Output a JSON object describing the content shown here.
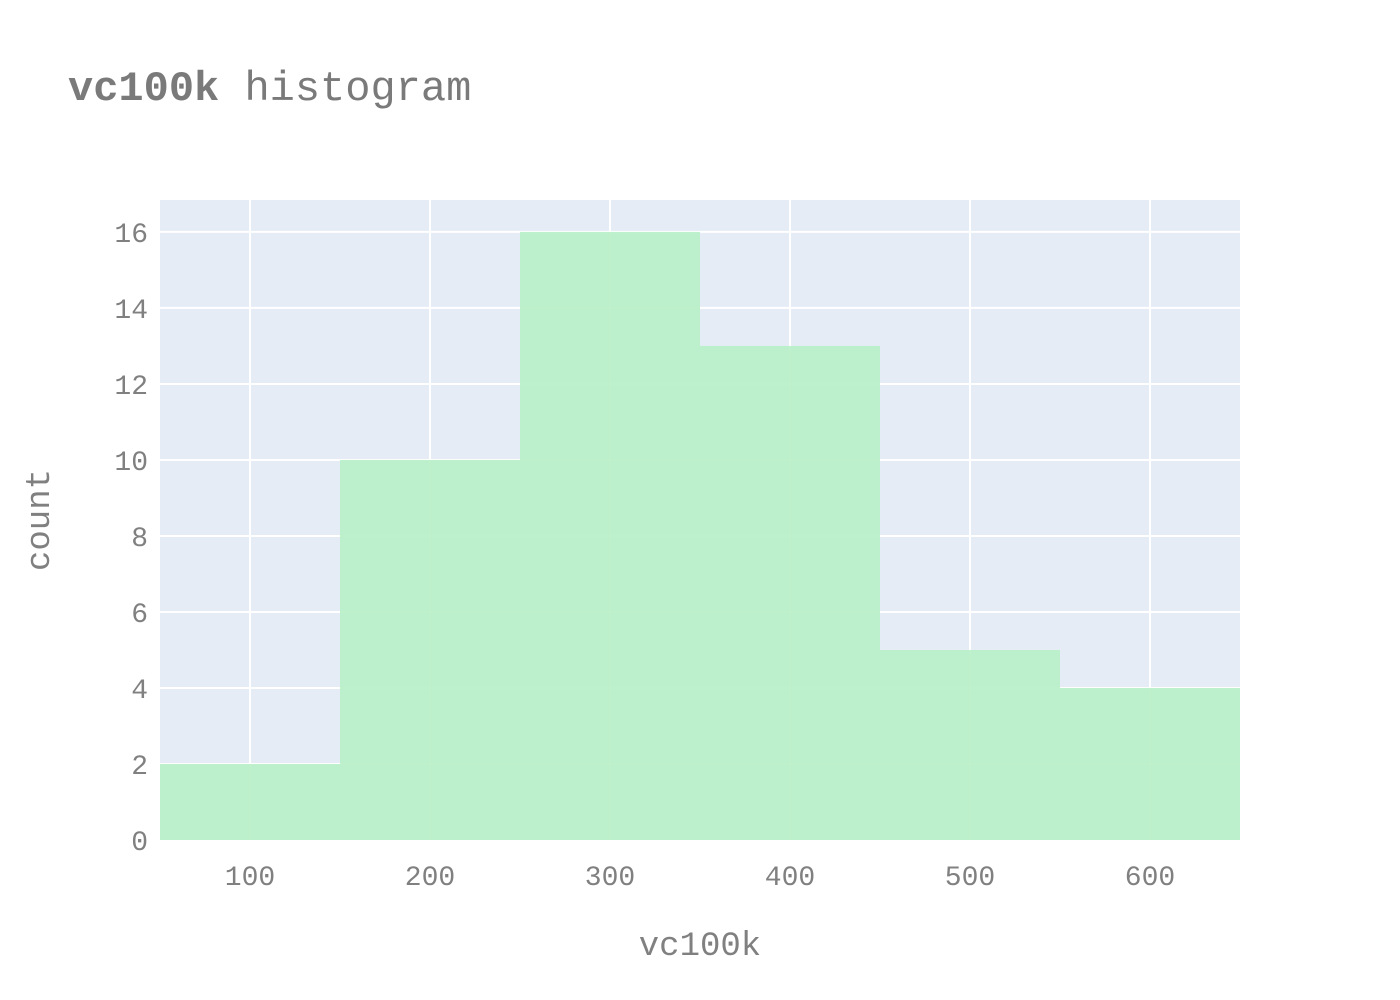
{
  "chart_data": {
    "type": "bar",
    "title_bold": "vc100k",
    "title_rest": " histogram",
    "xlabel": "vc100k",
    "ylabel": "count",
    "bins": [
      {
        "x0": 50,
        "x1": 150,
        "count": 2
      },
      {
        "x0": 150,
        "x1": 250,
        "count": 10
      },
      {
        "x0": 250,
        "x1": 350,
        "count": 16
      },
      {
        "x0": 350,
        "x1": 450,
        "count": 13
      },
      {
        "x0": 450,
        "x1": 550,
        "count": 5
      },
      {
        "x0": 550,
        "x1": 650,
        "count": 4
      }
    ],
    "xlim": [
      50,
      650
    ],
    "ylim": [
      0,
      16.84
    ],
    "xticks": [
      "100",
      "200",
      "300",
      "400",
      "500",
      "600"
    ],
    "xtick_values": [
      100,
      200,
      300,
      400,
      500,
      600
    ],
    "yticks": [
      "0",
      "2",
      "4",
      "6",
      "8",
      "10",
      "12",
      "14",
      "16"
    ],
    "ytick_values": [
      0,
      2,
      4,
      6,
      8,
      10,
      12,
      14,
      16
    ],
    "grid": true,
    "colors": {
      "bar": "#b9efc8",
      "plot_bg": "#e5ecf6",
      "grid": "#ffffff",
      "text": "#808080",
      "title": "#7a7a7a"
    }
  }
}
